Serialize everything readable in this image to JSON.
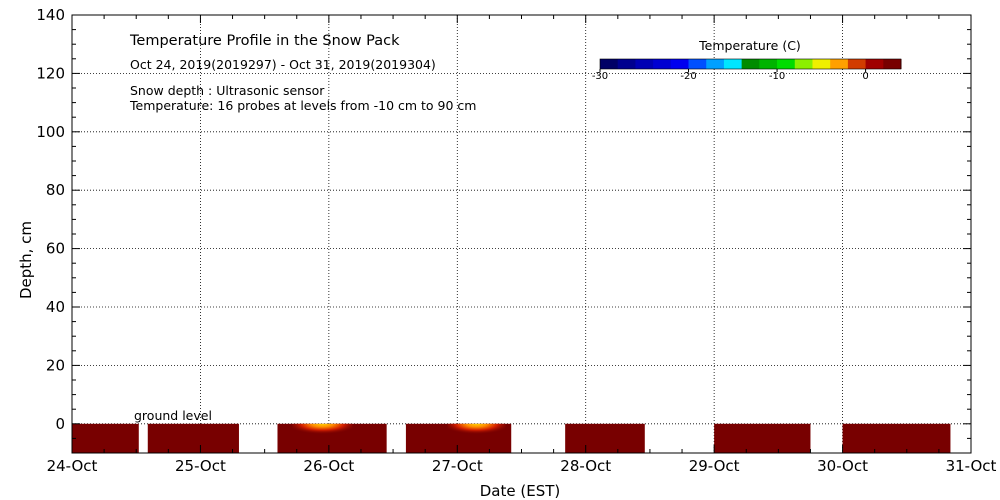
{
  "chart_data": {
    "type": "heatmap",
    "title": "Temperature Profile in the Snow Pack",
    "subtitle": "Oct 24, 2019(2019297) - Oct 31, 2019(2019304)",
    "notes": [
      "Snow depth : Ultrasonic sensor",
      "Temperature: 16 probes at levels from -10 cm to 90 cm"
    ],
    "xlabel": "Date (EST)",
    "ylabel": "Depth, cm",
    "x_ticks": [
      "24-Oct",
      "25-Oct",
      "26-Oct",
      "27-Oct",
      "28-Oct",
      "29-Oct",
      "30-Oct",
      "31-Oct"
    ],
    "x_range": [
      0,
      7
    ],
    "ylim": [
      -10,
      140
    ],
    "y_ticks": [
      0,
      20,
      40,
      60,
      80,
      100,
      120,
      140
    ],
    "grid": "dotted at major ticks",
    "ground_level_label": "ground level",
    "colorbar": {
      "title": "Temperature (C)",
      "placement": "top-right",
      "range": [
        -30,
        4
      ],
      "ticks": [
        -30,
        -20,
        -10,
        0
      ],
      "colors": [
        "#000066",
        "#00008f",
        "#0000b4",
        "#0000d2",
        "#0000f0",
        "#0050ff",
        "#00a0ff",
        "#00e6ff",
        "#008c00",
        "#00b400",
        "#00dc00",
        "#8cf000",
        "#f0f000",
        "#ffa000",
        "#d23c00",
        "#a00000",
        "#780000"
      ]
    },
    "data_blocks": [
      {
        "start_day": 0.0,
        "end_day": 0.52,
        "depth_top": 0,
        "depth_bottom": -10,
        "temp": 3
      },
      {
        "start_day": 0.59,
        "end_day": 1.3,
        "depth_top": 0,
        "depth_bottom": -10,
        "temp": 3
      },
      {
        "start_day": 1.6,
        "end_day": 2.45,
        "depth_top": 0,
        "depth_bottom": -10,
        "temp": 3,
        "warm_day": 1.95
      },
      {
        "start_day": 2.6,
        "end_day": 3.42,
        "depth_top": 0,
        "depth_bottom": -10,
        "temp": 3,
        "warm_day": 3.15
      },
      {
        "start_day": 3.84,
        "end_day": 4.46,
        "depth_top": 0,
        "depth_bottom": -10,
        "temp": 3
      },
      {
        "start_day": 5.0,
        "end_day": 5.75,
        "depth_top": 0,
        "depth_bottom": -10,
        "temp": 3
      },
      {
        "start_day": 6.0,
        "end_day": 6.84,
        "depth_top": 0,
        "depth_bottom": -10,
        "temp": 3
      }
    ]
  }
}
